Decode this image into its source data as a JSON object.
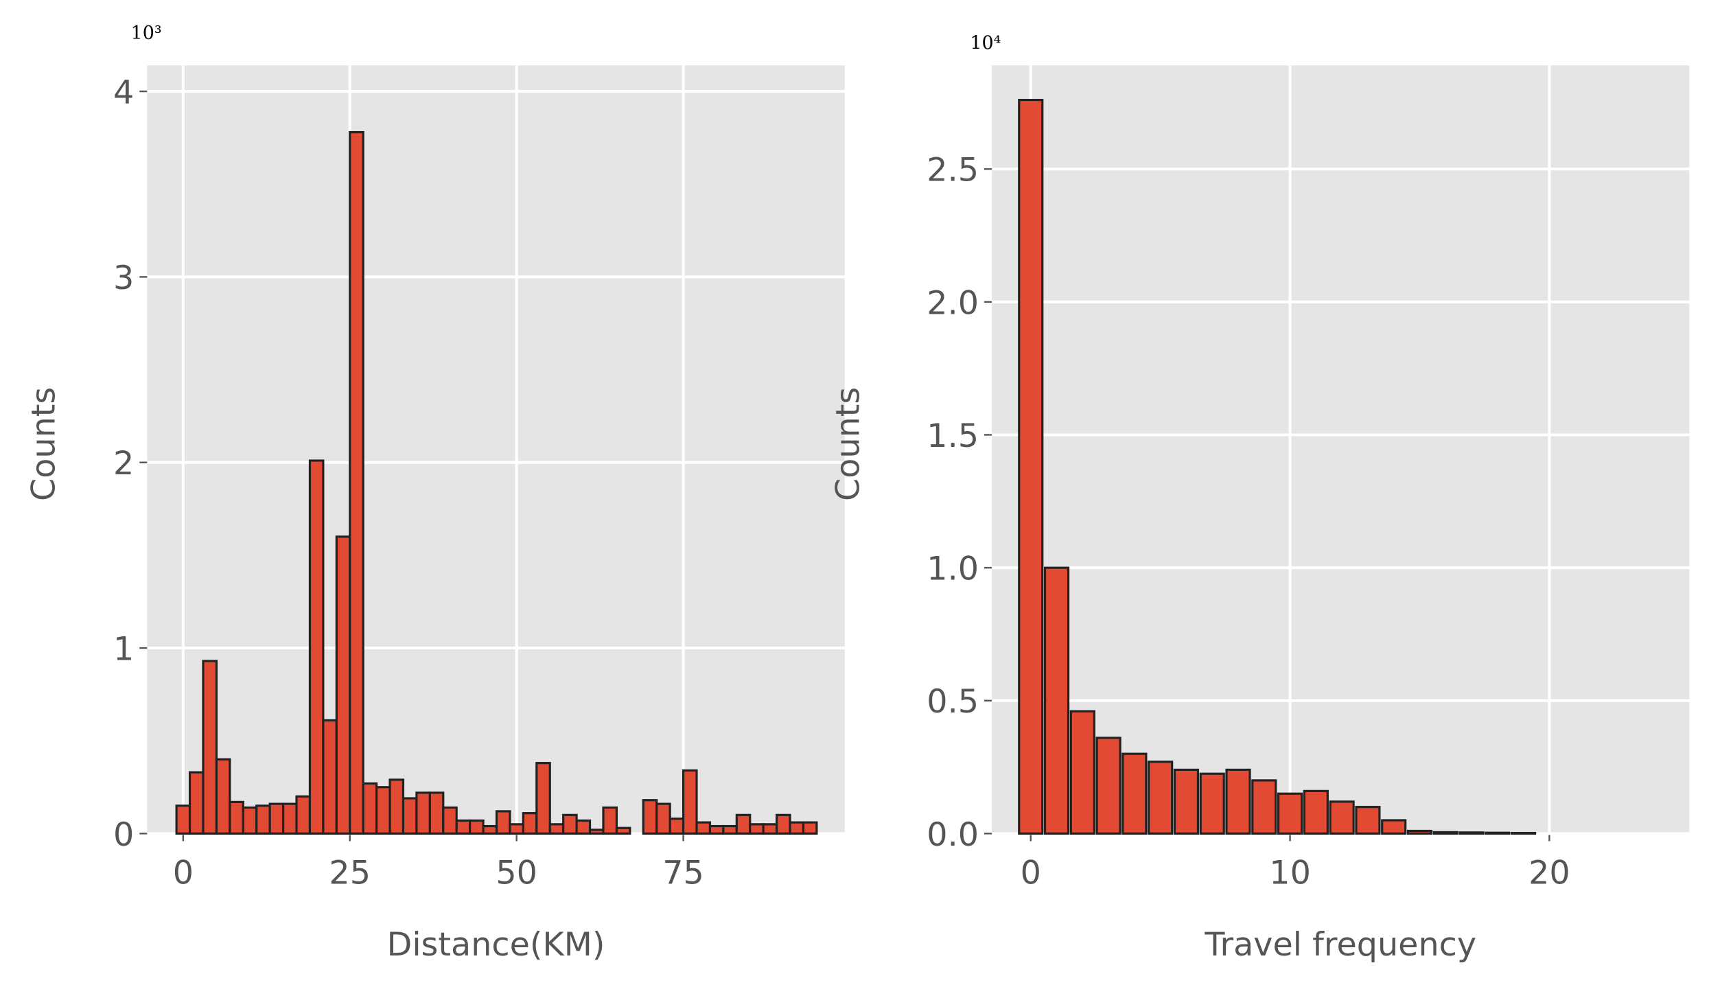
{
  "chart_data": [
    {
      "type": "histogram",
      "xlabel": "Distance(KM)",
      "ylabel": "Counts",
      "y_offset_label": "10³",
      "bins": [
        -1,
        1,
        3,
        5,
        7,
        9,
        11,
        13,
        15,
        17,
        19,
        21,
        23,
        25,
        27,
        29,
        31,
        33,
        35,
        37,
        39,
        41,
        43,
        45,
        47,
        49,
        51,
        53,
        55,
        57,
        59,
        61,
        63,
        65,
        67,
        69,
        71,
        73,
        75,
        77,
        79,
        81,
        83,
        85,
        87,
        89,
        91,
        93,
        95
      ],
      "counts": [
        0.15,
        0.33,
        0.93,
        0.4,
        0.17,
        0.14,
        0.15,
        0.16,
        0.16,
        0.2,
        2.01,
        0.61,
        1.6,
        3.78,
        0.27,
        0.25,
        0.29,
        0.19,
        0.22,
        0.22,
        0.14,
        0.07,
        0.07,
        0.04,
        0.12,
        0.05,
        0.11,
        0.38,
        0.05,
        0.1,
        0.07,
        0.02,
        0.14,
        0.03,
        0,
        0.18,
        0.16,
        0.08,
        0.34,
        0.06,
        0.04,
        0.04,
        0.1,
        0.05,
        0.05,
        0.1,
        0.06,
        0.06
      ],
      "color": "#e24a33",
      "edgecolor": "#222222",
      "rwidth": 1,
      "xlim": [
        -5.4,
        99.2
      ],
      "xticks": [
        0,
        25,
        50,
        75
      ],
      "ylim": [
        0,
        4.14
      ],
      "yticks": [
        0,
        1,
        2,
        3,
        4
      ],
      "grid": true
    },
    {
      "type": "histogram",
      "xlabel": "Travel frequency",
      "ylabel": "Counts",
      "y_offset_label": "10⁴",
      "bins": [
        -0.5,
        0.5,
        1.5,
        2.5,
        3.5,
        4.5,
        5.5,
        6.5,
        7.5,
        8.5,
        9.5,
        10.5,
        11.5,
        12.5,
        13.5,
        14.5,
        15.5,
        16.5,
        17.5,
        18.5,
        19.5,
        20.5,
        21.5,
        22.5,
        23.5,
        24.5
      ],
      "counts": [
        2.76,
        1.0,
        0.46,
        0.36,
        0.3,
        0.27,
        0.24,
        0.225,
        0.24,
        0.2,
        0.15,
        0.16,
        0.12,
        0.1,
        0.05,
        0.01,
        0.005,
        0.004,
        0.003,
        0.002,
        0,
        0,
        0,
        0,
        0
      ],
      "color": "#e24a33",
      "edgecolor": "#222222",
      "rwidth": 0.9,
      "xlim": [
        -1.5,
        25.4
      ],
      "xticks": [
        0,
        10,
        20
      ],
      "ylim": [
        0,
        2.89
      ],
      "yticks": [
        {
          "value": 0,
          "label": "0.0"
        },
        {
          "value": 0.5,
          "label": "0.5"
        },
        {
          "value": 1,
          "label": "1.0"
        },
        {
          "value": 1.5,
          "label": "1.5"
        },
        {
          "value": 2,
          "label": "2.0"
        },
        {
          "value": 2.5,
          "label": "2.5"
        }
      ],
      "grid": true
    }
  ]
}
